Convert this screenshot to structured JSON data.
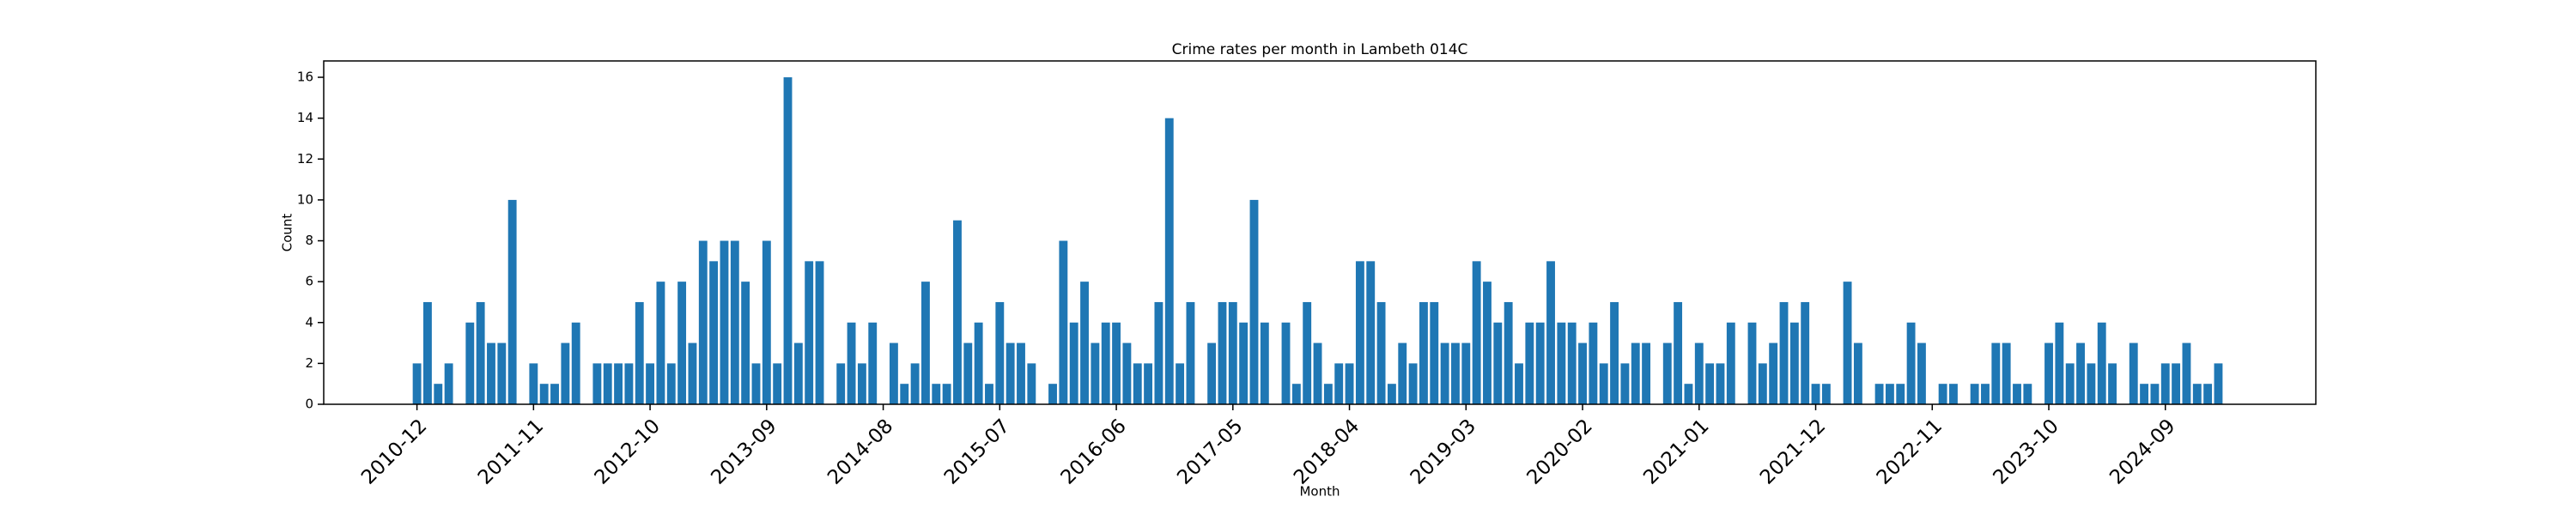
{
  "chart_data": {
    "type": "bar",
    "title": "Crime rates per month in Lambeth 014C",
    "xlabel": "Month",
    "ylabel": "Count",
    "color": "#1f77b4",
    "categories": [
      "2010-12",
      null,
      null,
      null,
      null,
      null,
      null,
      null,
      null,
      null,
      null,
      "2011-11",
      null,
      null,
      null,
      null,
      null,
      null,
      null,
      null,
      null,
      null,
      "2012-10",
      null,
      null,
      null,
      null,
      null,
      null,
      null,
      null,
      null,
      null,
      "2013-09",
      null,
      null,
      null,
      null,
      null,
      null,
      null,
      null,
      null,
      null,
      "2014-08",
      null,
      null,
      null,
      null,
      null,
      null,
      null,
      null,
      null,
      null,
      "2015-07",
      null,
      null,
      null,
      null,
      null,
      null,
      null,
      null,
      null,
      null,
      "2016-06",
      null,
      null,
      null,
      null,
      null,
      null,
      null,
      null,
      null,
      null,
      "2017-05",
      null,
      null,
      null,
      null,
      null,
      null,
      null,
      null,
      null,
      null,
      "2018-04",
      null,
      null,
      null,
      null,
      null,
      null,
      null,
      null,
      null,
      null,
      "2019-03",
      null,
      null,
      null,
      null,
      null,
      null,
      null,
      null,
      null,
      null,
      "2020-02",
      null,
      null,
      null,
      null,
      null,
      null,
      null,
      null,
      null,
      null,
      "2021-01",
      null,
      null,
      null,
      null,
      null,
      null,
      null,
      null,
      null,
      null,
      "2021-12",
      null,
      null,
      null,
      null,
      null,
      null,
      null,
      null,
      null,
      null,
      "2022-11",
      null,
      null,
      null,
      null,
      null,
      null,
      null,
      null,
      null,
      null,
      "2023-10",
      null,
      null,
      null,
      null,
      null,
      null,
      null,
      null,
      null,
      null,
      "2024-09",
      null,
      null,
      null,
      null,
      null
    ],
    "values": [
      2,
      5,
      1,
      2,
      0,
      4,
      5,
      3,
      3,
      10,
      0,
      2,
      1,
      1,
      3,
      4,
      0,
      2,
      2,
      2,
      2,
      5,
      2,
      6,
      2,
      6,
      3,
      8,
      7,
      8,
      8,
      6,
      2,
      8,
      2,
      16,
      3,
      7,
      7,
      0,
      2,
      4,
      2,
      4,
      0,
      3,
      1,
      2,
      6,
      1,
      1,
      9,
      3,
      4,
      1,
      5,
      3,
      3,
      2,
      0,
      1,
      8,
      4,
      6,
      3,
      4,
      4,
      3,
      2,
      2,
      5,
      14,
      2,
      5,
      0,
      3,
      5,
      5,
      4,
      10,
      4,
      0,
      4,
      1,
      5,
      3,
      1,
      2,
      2,
      7,
      7,
      5,
      1,
      3,
      2,
      5,
      5,
      3,
      3,
      3,
      7,
      6,
      4,
      5,
      2,
      4,
      4,
      7,
      4,
      4,
      3,
      4,
      2,
      5,
      2,
      3,
      3,
      0,
      3,
      5,
      1,
      3,
      2,
      2,
      4,
      0,
      4,
      2,
      3,
      5,
      4,
      5,
      1,
      1,
      0,
      6,
      3,
      0,
      1,
      1,
      1,
      4,
      3,
      0,
      1,
      1,
      0,
      1,
      1,
      3,
      3,
      1,
      1,
      0,
      3,
      4,
      2,
      3,
      2,
      4,
      2,
      0,
      3,
      1,
      1,
      2,
      2,
      3,
      1,
      1,
      2
    ],
    "ylim": [
      0,
      16.8
    ],
    "yticks": [
      0,
      2,
      4,
      6,
      8,
      10,
      12,
      14,
      16
    ]
  }
}
